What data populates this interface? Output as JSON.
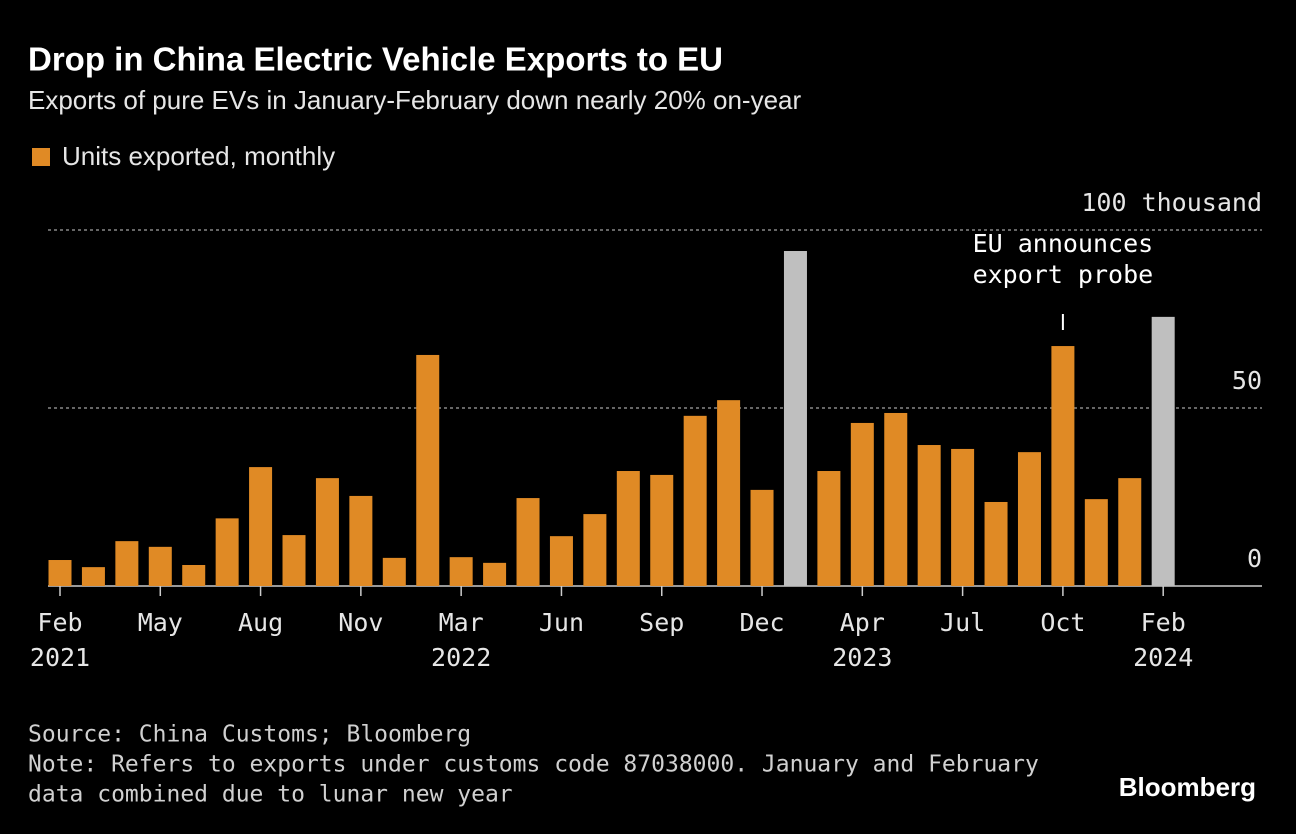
{
  "chart_data": {
    "type": "bar",
    "title": "Drop in China Electric Vehicle Exports to EU",
    "subtitle": "Exports of pure EVs in January-February down nearly 20% on-year",
    "categories": [
      "Feb",
      null,
      null,
      "May",
      null,
      null,
      "Aug",
      null,
      null,
      "Nov",
      null,
      null,
      "Mar",
      null,
      null,
      "Jun",
      null,
      null,
      "Sep",
      null,
      null,
      "Dec",
      null,
      null,
      "Apr",
      null,
      null,
      "Jul",
      null,
      null,
      "Oct",
      null,
      null,
      "Feb"
    ],
    "years": [
      "2021",
      null,
      null,
      null,
      null,
      null,
      null,
      null,
      null,
      null,
      null,
      null,
      "2022",
      null,
      null,
      null,
      null,
      null,
      null,
      null,
      null,
      null,
      null,
      null,
      "2023",
      null,
      null,
      null,
      null,
      null,
      null,
      null,
      null,
      "2024"
    ],
    "series": [
      {
        "name": "Units exported, monthly",
        "color": "#e08a25",
        "values": [
          7.3,
          5.3,
          12.6,
          11,
          5.9,
          19,
          33.4,
          14.3,
          30.3,
          25.3,
          7.9,
          64.9,
          8.1,
          6.5,
          24.7,
          14,
          20.2,
          32.3,
          31.2,
          47.8,
          52.2,
          27,
          94.1,
          32.3,
          45.8,
          48.6,
          39.6,
          38.5,
          23.6,
          37.6,
          67.4,
          24.4,
          30.3,
          75.6
        ],
        "colors": [
          "#e08a25",
          "#e08a25",
          "#e08a25",
          "#e08a25",
          "#e08a25",
          "#e08a25",
          "#e08a25",
          "#e08a25",
          "#e08a25",
          "#e08a25",
          "#e08a25",
          "#e08a25",
          "#e08a25",
          "#e08a25",
          "#e08a25",
          "#e08a25",
          "#e08a25",
          "#e08a25",
          "#e08a25",
          "#e08a25",
          "#e08a25",
          "#e08a25",
          "#bfbfbf",
          "#e08a25",
          "#e08a25",
          "#e08a25",
          "#e08a25",
          "#e08a25",
          "#e08a25",
          "#e08a25",
          "#e08a25",
          "#e08a25",
          "#e08a25",
          "#bfbfbf"
        ]
      }
    ],
    "ylim": [
      0,
      100
    ],
    "yticks": [
      0,
      50,
      {
        "value": 100,
        "label": "100 thousand"
      }
    ],
    "grid": true,
    "annotation": [
      "EU announces",
      "export probe"
    ],
    "source": "Source: China Customs; Bloomberg",
    "note": [
      "Note: Refers to exports under customs code 87038000. January and February",
      "data combined due to lunar new year"
    ],
    "brand": "Bloomberg"
  }
}
